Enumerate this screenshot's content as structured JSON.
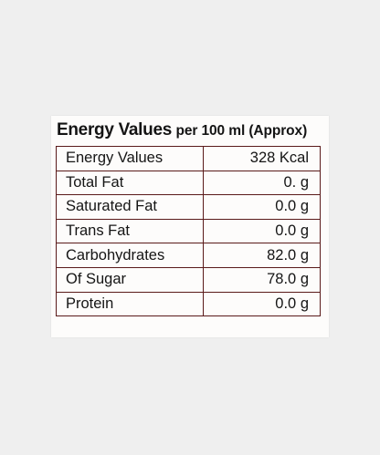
{
  "label": {
    "title_main": "Energy Values",
    "title_sub": "per 100 ml (Approx)",
    "rows": [
      {
        "name": "Energy Values",
        "value": "328 Kcal"
      },
      {
        "name": "Total Fat",
        "value": "0. g"
      },
      {
        "name": "Saturated Fat",
        "value": "0.0 g"
      },
      {
        "name": "Trans Fat",
        "value": "0.0 g"
      },
      {
        "name": "Carbohydrates",
        "value": "82.0 g"
      },
      {
        "name": "Of Sugar",
        "value": "78.0 g"
      },
      {
        "name": "Protein",
        "value": "0.0 g"
      }
    ]
  },
  "colors": {
    "background": "#efefef",
    "card": "#fdfcfb",
    "border": "#5a1a1a",
    "text": "#151515"
  }
}
